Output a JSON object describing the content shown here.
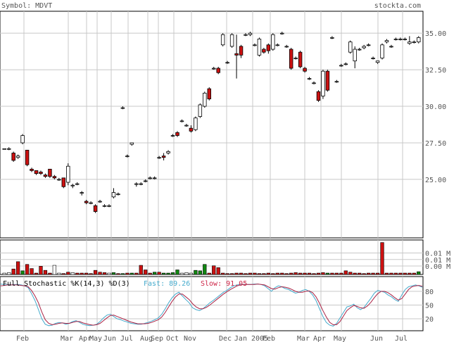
{
  "header": {
    "symbol_label": "Symbol: MDVT",
    "site_label": "stockta.com"
  },
  "colors": {
    "up": "#ffffff",
    "down": "#cc1111",
    "vol_up": "#118811",
    "vol_down": "#cc1111",
    "fast": "#44aacc",
    "slow": "#aa2244",
    "grid": "#c8c8c8"
  },
  "chart_data": [
    {
      "type": "candlestick",
      "ylim": [
        21.0,
        36.5
      ],
      "yticks": [
        "35.00",
        "32.50",
        "30.00",
        "27.50",
        "25.00"
      ],
      "ytick_values": [
        35.0,
        32.5,
        30.0,
        27.5,
        25.0
      ],
      "x_labels": [
        "Feb",
        "Mar",
        "Apr",
        "May",
        "Jun",
        "Jul",
        "Aug",
        "Sep",
        "Oct",
        "Nov",
        "Dec",
        "Jan 2005",
        "Feb",
        "Mar",
        "Apr",
        "May",
        "Jun",
        "Jul"
      ],
      "grid": true,
      "candles": [
        [
          27.1,
          27.1,
          27.1,
          27.1
        ],
        [
          27.1,
          27.2,
          27.0,
          27.1
        ],
        [
          26.8,
          26.9,
          26.2,
          26.3
        ],
        [
          26.5,
          26.7,
          26.4,
          26.6
        ],
        [
          27.5,
          28.1,
          27.4,
          28.0
        ],
        [
          27.0,
          27.0,
          25.9,
          26.0
        ],
        [
          25.7,
          25.8,
          25.5,
          25.6
        ],
        [
          25.6,
          25.6,
          25.3,
          25.4
        ],
        [
          25.5,
          25.6,
          25.3,
          25.4
        ],
        [
          25.3,
          25.4,
          25.1,
          25.2
        ],
        [
          25.7,
          25.7,
          25.1,
          25.2
        ],
        [
          25.2,
          25.3,
          25.0,
          25.1
        ],
        [
          25.0,
          25.1,
          24.9,
          25.0
        ],
        [
          25.1,
          25.1,
          24.4,
          24.5
        ],
        [
          24.8,
          26.1,
          24.6,
          25.9
        ],
        [
          24.6,
          24.7,
          24.4,
          24.6
        ],
        [
          24.7,
          24.8,
          24.6,
          24.7
        ],
        [
          24.1,
          24.2,
          23.9,
          24.1
        ],
        [
          23.5,
          23.6,
          23.3,
          23.4
        ],
        [
          23.4,
          23.5,
          23.3,
          23.4
        ],
        [
          23.2,
          23.3,
          22.7,
          22.8
        ],
        [
          23.5,
          23.6,
          23.4,
          23.5
        ],
        [
          23.2,
          23.3,
          23.1,
          23.2
        ],
        [
          23.2,
          23.3,
          23.1,
          23.2
        ],
        [
          23.8,
          24.4,
          23.7,
          24.1
        ],
        [
          24.0,
          24.1,
          23.9,
          24.0
        ],
        [
          29.9,
          30.0,
          29.8,
          29.9
        ],
        [
          26.6,
          26.7,
          26.5,
          26.6
        ],
        [
          27.4,
          27.5,
          27.3,
          27.5
        ],
        [
          24.7,
          24.8,
          24.5,
          24.7
        ],
        [
          24.7,
          24.8,
          24.6,
          24.7
        ],
        [
          24.9,
          25.0,
          24.8,
          24.9
        ],
        [
          25.1,
          25.2,
          25.0,
          25.1
        ],
        [
          25.1,
          25.2,
          25.0,
          25.1
        ],
        [
          26.5,
          26.6,
          26.4,
          26.5
        ],
        [
          26.6,
          26.8,
          26.3,
          26.5
        ],
        [
          26.8,
          27.0,
          26.7,
          26.9
        ],
        [
          28.0,
          28.1,
          27.9,
          28.0
        ],
        [
          28.2,
          28.3,
          27.9,
          28.0
        ],
        [
          29.0,
          29.1,
          28.9,
          29.0
        ],
        [
          28.7,
          28.8,
          28.6,
          28.7
        ],
        [
          28.5,
          28.7,
          28.2,
          28.3
        ],
        [
          28.4,
          29.3,
          28.3,
          29.2
        ],
        [
          29.3,
          30.2,
          29.2,
          30.1
        ],
        [
          30.0,
          31.0,
          29.9,
          30.9
        ],
        [
          31.2,
          31.3,
          30.4,
          30.5
        ],
        [
          32.6,
          32.7,
          32.5,
          32.6
        ],
        [
          32.6,
          32.7,
          32.2,
          32.3
        ],
        [
          34.2,
          35.0,
          34.1,
          34.9
        ],
        [
          33.0,
          33.1,
          32.9,
          33.0
        ],
        [
          34.1,
          35.0,
          34.0,
          34.9
        ],
        [
          33.6,
          34.9,
          31.9,
          33.5
        ],
        [
          34.1,
          34.2,
          33.3,
          33.5
        ],
        [
          34.9,
          35.0,
          34.8,
          34.9
        ],
        [
          34.9,
          35.1,
          34.8,
          35.0
        ],
        [
          34.2,
          34.3,
          34.1,
          34.2
        ],
        [
          33.5,
          34.7,
          33.4,
          34.6
        ],
        [
          33.9,
          34.0,
          33.6,
          33.7
        ],
        [
          34.2,
          34.3,
          33.6,
          33.8
        ],
        [
          33.9,
          35.0,
          33.8,
          34.9
        ],
        [
          34.2,
          34.3,
          34.1,
          34.2
        ],
        [
          35.0,
          35.1,
          34.9,
          35.0
        ],
        [
          34.1,
          34.2,
          34.0,
          34.1
        ],
        [
          33.9,
          34.0,
          32.5,
          32.6
        ],
        [
          33.3,
          33.4,
          33.2,
          33.3
        ],
        [
          33.7,
          33.8,
          32.6,
          32.7
        ],
        [
          32.6,
          32.7,
          32.3,
          32.4
        ],
        [
          31.9,
          32.0,
          31.8,
          31.9
        ],
        [
          31.6,
          31.7,
          31.5,
          31.6
        ],
        [
          31.0,
          31.1,
          30.3,
          30.4
        ],
        [
          30.7,
          32.5,
          30.5,
          32.4
        ],
        [
          32.4,
          32.5,
          31.0,
          31.1
        ],
        [
          34.7,
          34.8,
          34.6,
          34.7
        ],
        [
          31.7,
          31.8,
          31.6,
          31.7
        ],
        [
          32.8,
          32.9,
          32.7,
          32.8
        ],
        [
          32.9,
          33.0,
          32.8,
          32.9
        ],
        [
          33.7,
          34.5,
          33.6,
          34.4
        ],
        [
          33.1,
          34.1,
          32.6,
          33.9
        ],
        [
          33.9,
          34.0,
          33.8,
          33.9
        ],
        [
          34.0,
          34.2,
          33.9,
          34.1
        ],
        [
          34.2,
          34.3,
          34.1,
          34.2
        ],
        [
          33.3,
          33.4,
          33.2,
          33.3
        ],
        [
          33.0,
          33.1,
          32.9,
          33.1
        ],
        [
          33.3,
          34.3,
          33.2,
          34.2
        ],
        [
          34.4,
          34.6,
          34.3,
          34.5
        ],
        [
          34.1,
          34.2,
          34.0,
          34.1
        ],
        [
          34.6,
          34.7,
          34.5,
          34.6
        ],
        [
          34.6,
          34.7,
          34.5,
          34.6
        ],
        [
          34.6,
          34.7,
          34.5,
          34.6
        ],
        [
          34.3,
          34.8,
          34.2,
          34.4
        ],
        [
          34.4,
          34.5,
          34.3,
          34.4
        ],
        [
          34.4,
          34.8,
          34.3,
          34.7
        ]
      ]
    },
    {
      "type": "bar",
      "yticks": [
        "0.01 M",
        "0.01 M",
        "0.00 M"
      ],
      "up_down": [
        "n",
        "n",
        "d",
        "d",
        "u",
        "d",
        "d",
        "d",
        "d",
        "d",
        "d",
        "n",
        "n",
        "d",
        "d",
        "n",
        "d",
        "d",
        "d",
        "d",
        "d",
        "d",
        "d",
        "n",
        "u",
        "d",
        "u",
        "d",
        "u",
        "d",
        "d",
        "d",
        "d",
        "u",
        "d",
        "u",
        "u",
        "u",
        "u",
        "n",
        "n",
        "n",
        "u",
        "u",
        "u",
        "d",
        "d",
        "d",
        "d",
        "d",
        "d",
        "d",
        "d",
        "d",
        "d",
        "d",
        "d",
        "d",
        "d",
        "d",
        "d",
        "d",
        "d",
        "d",
        "d",
        "d",
        "d",
        "d",
        "d",
        "d",
        "d",
        "u",
        "d",
        "d",
        "d",
        "d",
        "d",
        "d",
        "d",
        "d",
        "d",
        "d",
        "d",
        "d",
        "d",
        "d",
        "d",
        "d",
        "d",
        "d",
        "d",
        "u"
      ],
      "values": [
        0.3,
        0.4,
        1.2,
        2.8,
        0.8,
        2.2,
        1.3,
        0.3,
        1.8,
        0.9,
        0.3,
        2.0,
        0.3,
        0.2,
        0.5,
        0.4,
        0.3,
        0.3,
        0.3,
        0.2,
        0.9,
        0.5,
        0.4,
        0.3,
        0.4,
        0.2,
        0.2,
        0.3,
        0.3,
        0.3,
        2.0,
        1.0,
        0.3,
        0.5,
        0.5,
        0.3,
        0.3,
        0.4,
        1.0,
        0.3,
        0.4,
        0.3,
        0.9,
        0.8,
        2.2,
        0.3,
        1.9,
        1.5,
        0.3,
        0.2,
        0.2,
        0.3,
        0.3,
        0.2,
        0.3,
        0.3,
        0.2,
        0.2,
        0.3,
        0.2,
        0.3,
        0.3,
        0.2,
        0.3,
        0.4,
        0.3,
        0.3,
        0.3,
        0.2,
        0.3,
        0.4,
        0.3,
        0.3,
        0.3,
        0.3,
        0.8,
        0.5,
        0.3,
        0.3,
        0.2,
        0.3,
        0.3,
        0.3,
        7.0,
        0.3,
        0.3,
        0.3,
        0.3,
        0.3,
        0.3,
        0.3,
        0.6
      ]
    },
    {
      "type": "line",
      "title": "Full Stochastic %K(14,3) %D(3)",
      "fast_label": "Fast: 89.26",
      "slow_label": "Slow: 91.05",
      "ylim": [
        0,
        100
      ],
      "yticks": [
        "80",
        "50",
        "20"
      ],
      "ytick_values": [
        80,
        50,
        20
      ],
      "series": [
        {
          "name": "Fast",
          "values": [
            96,
            95,
            95,
            94,
            95,
            95,
            94,
            92,
            88,
            75,
            60,
            40,
            20,
            8,
            5,
            6,
            10,
            12,
            11,
            8,
            10,
            14,
            16,
            12,
            8,
            6,
            5,
            6,
            8,
            14,
            22,
            28,
            30,
            25,
            20,
            18,
            15,
            13,
            10,
            9,
            8,
            8,
            10,
            12,
            15,
            18,
            22,
            30,
            42,
            55,
            66,
            74,
            78,
            70,
            62,
            55,
            44,
            40,
            38,
            42,
            48,
            55,
            60,
            66,
            72,
            78,
            82,
            88,
            92,
            94,
            95,
            95,
            95,
            95,
            96,
            96,
            95,
            92,
            86,
            80,
            88,
            92,
            90,
            86,
            84,
            80,
            76,
            78,
            82,
            84,
            80,
            72,
            60,
            42,
            25,
            12,
            6,
            4,
            10,
            22,
            34,
            46,
            48,
            52,
            44,
            40,
            45,
            55,
            65,
            76,
            82,
            80,
            78,
            72,
            68,
            62,
            58,
            72,
            84,
            90,
            92,
            94,
            92,
            89
          ]
        },
        {
          "name": "Slow",
          "values": [
            92,
            93,
            94,
            94,
            94,
            94,
            93,
            92,
            90,
            82,
            70,
            55,
            35,
            18,
            10,
            7,
            8,
            10,
            11,
            10,
            10,
            12,
            14,
            14,
            11,
            9,
            7,
            6,
            7,
            10,
            16,
            22,
            27,
            28,
            25,
            22,
            19,
            16,
            13,
            11,
            9,
            9,
            9,
            10,
            12,
            15,
            18,
            24,
            34,
            46,
            58,
            68,
            74,
            74,
            68,
            62,
            53,
            46,
            42,
            42,
            45,
            50,
            56,
            62,
            68,
            74,
            79,
            84,
            88,
            92,
            94,
            95,
            95,
            95,
            95,
            96,
            95,
            94,
            90,
            86,
            85,
            88,
            90,
            89,
            87,
            84,
            80,
            78,
            78,
            80,
            81,
            77,
            68,
            54,
            38,
            24,
            12,
            7,
            7,
            14,
            26,
            38,
            44,
            49,
            47,
            44,
            43,
            48,
            56,
            66,
            75,
            80,
            80,
            77,
            72,
            66,
            61,
            64,
            74,
            84,
            90,
            92,
            93,
            91
          ]
        }
      ]
    }
  ]
}
